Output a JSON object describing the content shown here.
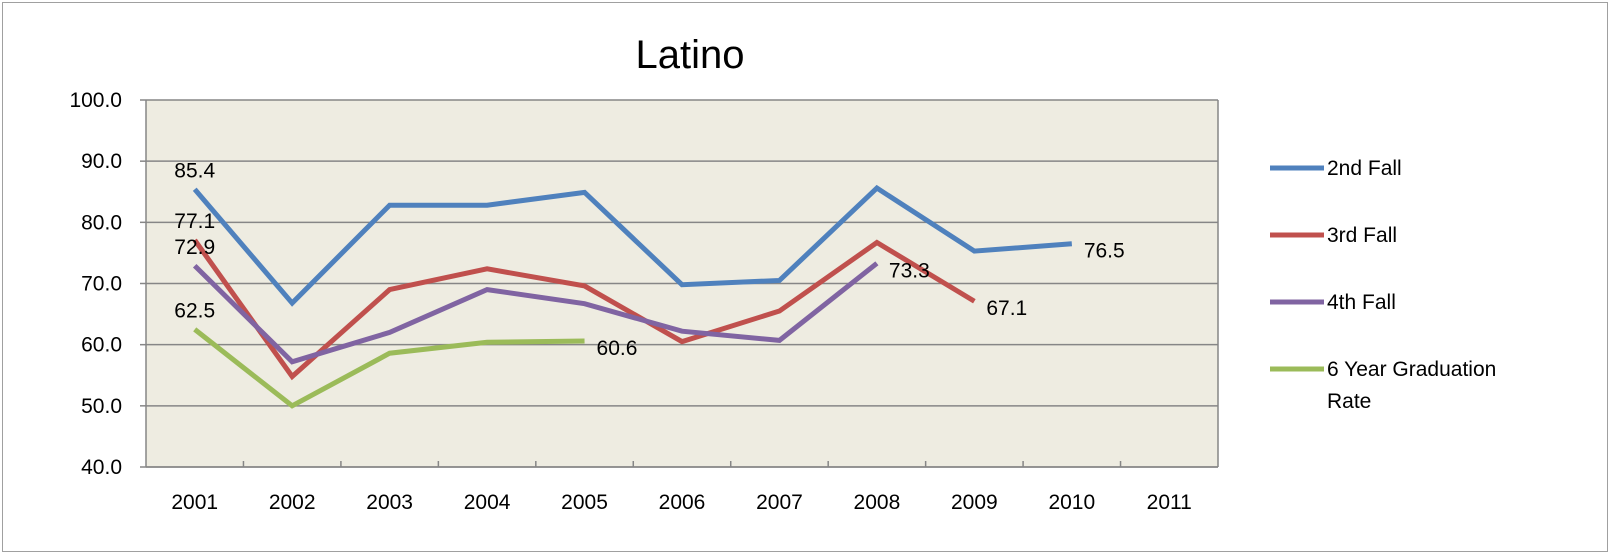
{
  "chart_data": {
    "type": "line",
    "title": "Latino",
    "xlabel": "",
    "ylabel": "",
    "categories": [
      "2001",
      "2002",
      "2003",
      "2004",
      "2005",
      "2006",
      "2007",
      "2008",
      "2009",
      "2010",
      "2011"
    ],
    "ylim": [
      40,
      100
    ],
    "yticks": [
      "40.0",
      "50.0",
      "60.0",
      "70.0",
      "80.0",
      "90.0",
      "100.0"
    ],
    "grid": "horizontal",
    "legend_position": "right",
    "plot_background": "#EEECE1",
    "series": [
      {
        "name": "2nd Fall",
        "color": "#4F81BD",
        "values": [
          85.4,
          66.8,
          82.8,
          82.8,
          84.9,
          69.8,
          70.5,
          85.6,
          75.3,
          76.5,
          null
        ],
        "data_labels": [
          {
            "index": 0,
            "text": "85.4"
          },
          {
            "index": 9,
            "text": "76.5"
          }
        ]
      },
      {
        "name": "3rd Fall",
        "color": "#C0504D",
        "values": [
          77.1,
          54.8,
          69.0,
          72.4,
          69.6,
          60.5,
          65.5,
          76.7,
          67.1,
          null,
          null
        ],
        "data_labels": [
          {
            "index": 0,
            "text": "77.1"
          },
          {
            "index": 8,
            "text": "67.1"
          }
        ]
      },
      {
        "name": "4th Fall",
        "color": "#8064A2",
        "values": [
          72.9,
          57.2,
          62.0,
          69.0,
          66.7,
          62.2,
          60.7,
          73.3,
          null,
          null,
          null
        ],
        "data_labels": [
          {
            "index": 0,
            "text": "72.9"
          },
          {
            "index": 7,
            "text": "73.3"
          }
        ]
      },
      {
        "name": "6 Year Graduation Rate",
        "legend_lines": [
          "6 Year Graduation",
          "Rate"
        ],
        "color": "#9BBB59",
        "values": [
          62.5,
          50.0,
          58.6,
          60.4,
          60.6,
          null,
          null,
          null,
          null,
          null,
          null
        ],
        "data_labels": [
          {
            "index": 0,
            "text": "62.5"
          },
          {
            "index": 4,
            "text": "60.6"
          }
        ]
      }
    ]
  }
}
